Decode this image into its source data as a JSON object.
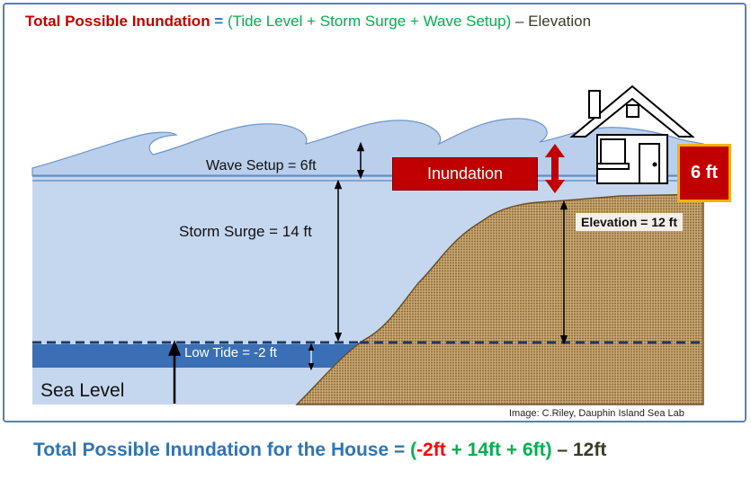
{
  "formula_top": {
    "part1": "Total Possible Inundation",
    "part2": " = ",
    "part3": "(Tide Level + Storm Surge + Wave Setup)",
    "part4": " – Elevation"
  },
  "labels": {
    "wave_setup": "Wave Setup = 6ft",
    "storm_surge": "Storm Surge = 14 ft",
    "low_tide": "Low Tide = -2 ft",
    "sea_level": "Sea Level",
    "elevation": "Elevation = 12 ft",
    "inundation": "Inundation",
    "result": "6 ft",
    "credit": "Image: C.Riley,  Dauphin Island Sea Lab"
  },
  "formula_bottom": {
    "part1": "Total Possible Inundation for the House = ",
    "part2": "(",
    "part3": "-2ft",
    "part4": " + 14ft + 6ft",
    "part5": ")",
    "part6": " – ",
    "part7": "12ft"
  },
  "colors": {
    "dark_red": "#c00000",
    "blue_title": "#2e75b6",
    "green": "#00b050",
    "red": "#ff0000",
    "gray_brown": "#3a3a28",
    "water_light": "#c5d7ee",
    "water_dark": "#3b6fb5",
    "sand": "#b8955e",
    "gold": "#f4b400"
  }
}
